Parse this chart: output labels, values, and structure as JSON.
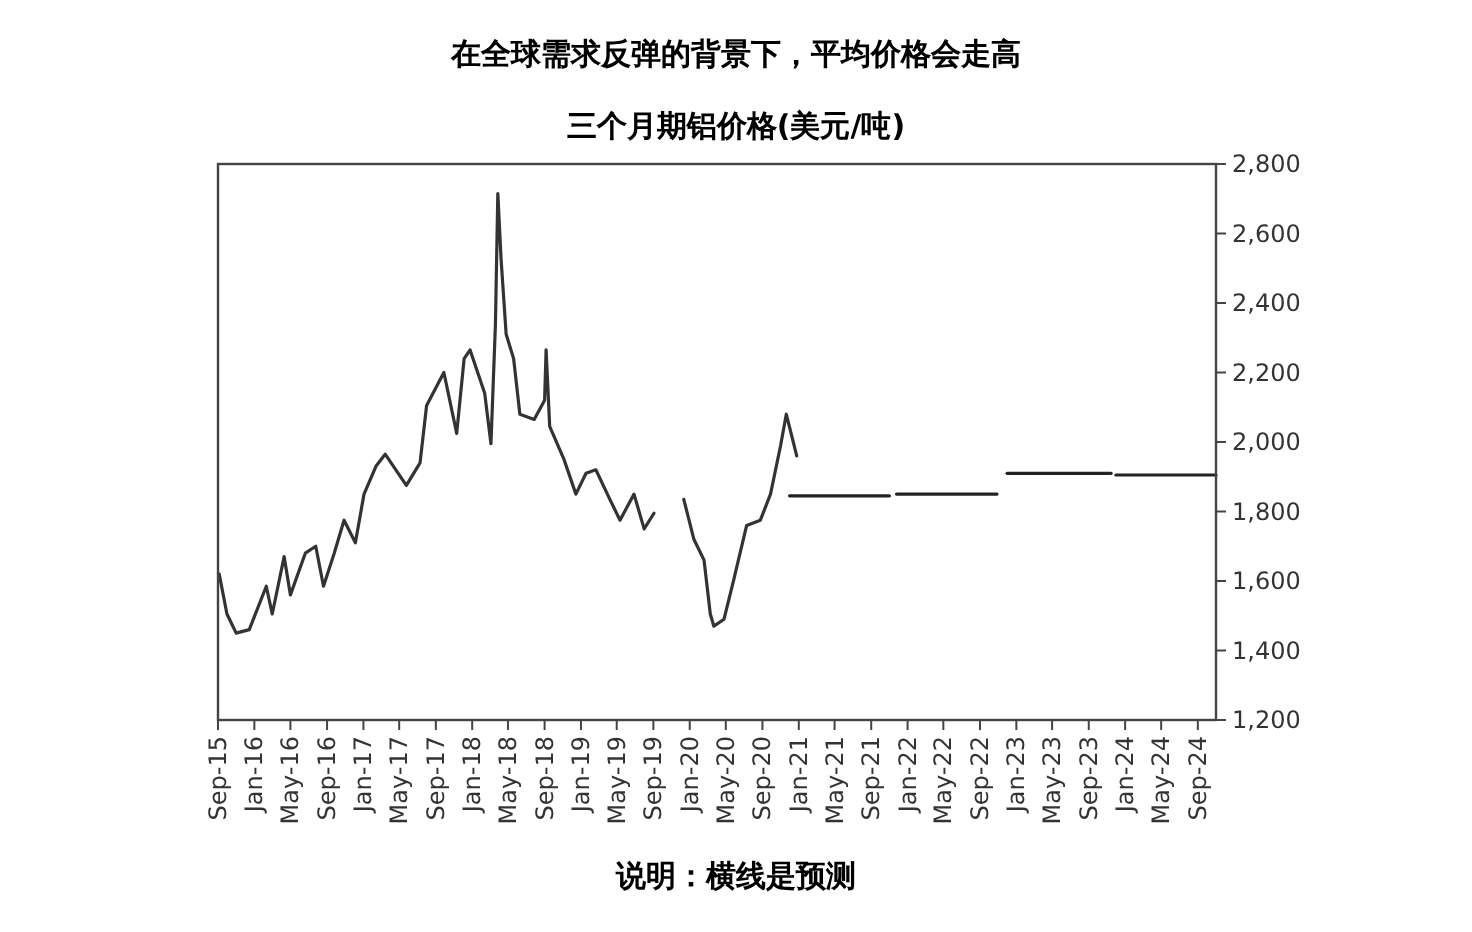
{
  "chart_data": {
    "type": "line",
    "title": "在全球需求反弹的背景下，平均价格会走高",
    "subtitle": "三个月期铝价格(美元/吨)",
    "annotations": [
      "说明：横线是预测"
    ],
    "xlim": [
      "2015-09",
      "2024-11"
    ],
    "ylim": [
      1200,
      2800
    ],
    "xticks": [
      {
        "value": "2015-09",
        "label": "Sep-15"
      },
      {
        "value": "2016-01",
        "label": "Jan-16"
      },
      {
        "value": "2016-05",
        "label": "May-16"
      },
      {
        "value": "2016-09",
        "label": "Sep-16"
      },
      {
        "value": "2017-01",
        "label": "Jan-17"
      },
      {
        "value": "2017-05",
        "label": "May-17"
      },
      {
        "value": "2017-09",
        "label": "Sep-17"
      },
      {
        "value": "2018-01",
        "label": "Jan-18"
      },
      {
        "value": "2018-05",
        "label": "May-18"
      },
      {
        "value": "2018-09",
        "label": "Sep-18"
      },
      {
        "value": "2019-01",
        "label": "Jan-19"
      },
      {
        "value": "2019-05",
        "label": "May-19"
      },
      {
        "value": "2019-09",
        "label": "Sep-19"
      },
      {
        "value": "2020-01",
        "label": "Jan-20"
      },
      {
        "value": "2020-05",
        "label": "May-20"
      },
      {
        "value": "2020-09",
        "label": "Sep-20"
      },
      {
        "value": "2021-01",
        "label": "Jan-21"
      },
      {
        "value": "2021-05",
        "label": "May-21"
      },
      {
        "value": "2021-09",
        "label": "Sep-21"
      },
      {
        "value": "2022-01",
        "label": "Jan-22"
      },
      {
        "value": "2022-05",
        "label": "May-22"
      },
      {
        "value": "2022-09",
        "label": "Sep-22"
      },
      {
        "value": "2023-01",
        "label": "Jan-23"
      },
      {
        "value": "2023-05",
        "label": "May-23"
      },
      {
        "value": "2023-09",
        "label": "Sep-23"
      },
      {
        "value": "2024-01",
        "label": "Jan-24"
      },
      {
        "value": "2024-05",
        "label": "May-24"
      },
      {
        "value": "2024-09",
        "label": "Sep-24"
      }
    ],
    "yticks": [
      {
        "value": 1200,
        "label": "1,200"
      },
      {
        "value": 1400,
        "label": "1,400"
      },
      {
        "value": 1600,
        "label": "1,600"
      },
      {
        "value": 1800,
        "label": "1,800"
      },
      {
        "value": 2000,
        "label": "2,000"
      },
      {
        "value": 2200,
        "label": "2,200"
      },
      {
        "value": 2400,
        "label": "2,400"
      },
      {
        "value": 2600,
        "label": "2,600"
      },
      {
        "value": 2800,
        "label": "2,800"
      }
    ],
    "series": [
      {
        "color": "#333333",
        "x": [
          "2015-09-05",
          "2015-10",
          "2015-11",
          "2015-12-15",
          "2016-02-10",
          "2016-03",
          "2016-04-10",
          "2016-05",
          "2016-06-20",
          "2016-07-25",
          "2016-08-20",
          "2016-09-25",
          "2016-10-28",
          "2016-12-05",
          "2017-01-03",
          "2017-02-12",
          "2017-03-15",
          "2017-05-25",
          "2017-07-10",
          "2017-08-01",
          "2017-09-28",
          "2017-11-10",
          "2017-12-05",
          "2017-12-25",
          "2018-02-12",
          "2018-03-05",
          "2018-03-20",
          "2018-03-28",
          "2018-04-08",
          "2018-04-25",
          "2018-05-20",
          "2018-06-10",
          "2018-07-28",
          "2018-09-01",
          "2018-09-06",
          "2018-09-18",
          "2018-11-05",
          "2018-12-15",
          "2019-01-18",
          "2019-02-20",
          "2019-04-08",
          "2019-05-12",
          "2019-06-28",
          "2019-08-01",
          "2019-09-03"
        ],
        "values": [
          1620,
          1505,
          1450,
          1460,
          1585,
          1505,
          1670,
          1560,
          1680,
          1700,
          1585,
          1680,
          1775,
          1710,
          1850,
          1930,
          1965,
          1875,
          1940,
          2105,
          2200,
          2025,
          2240,
          2265,
          2140,
          1995,
          2340,
          2715,
          2525,
          2310,
          2240,
          2080,
          2065,
          2120,
          2265,
          2045,
          1950,
          1850,
          1910,
          1920,
          1835,
          1775,
          1850,
          1750,
          1795
        ]
      },
      {
        "color": "#333333",
        "x": [
          "2019-12-12",
          "2020-01-15",
          "2020-02-18",
          "2020-03-10",
          "2020-03-22",
          "2020-04-25",
          "2020-05-28",
          "2020-07-10",
          "2020-08-25",
          "2020-09-28",
          "2020-11-01",
          "2020-11-20",
          "2020-12-25"
        ],
        "values": [
          1835,
          1720,
          1660,
          1505,
          1470,
          1490,
          1605,
          1760,
          1775,
          1850,
          1990,
          2080,
          1960
        ]
      },
      {
        "color": "#222222",
        "x": [
          "2020-12",
          "2021-11"
        ],
        "values": [
          1845,
          1845
        ]
      },
      {
        "color": "#222222",
        "x": [
          "2021-11-25",
          "2022-10-28"
        ],
        "values": [
          1850,
          1850
        ]
      },
      {
        "color": "#222222",
        "x": [
          "2022-12",
          "2023-11-15"
        ],
        "values": [
          1910,
          1910
        ]
      },
      {
        "color": "#222222",
        "x": [
          "2023-12",
          "2024-11"
        ],
        "values": [
          1905,
          1905
        ]
      }
    ]
  }
}
